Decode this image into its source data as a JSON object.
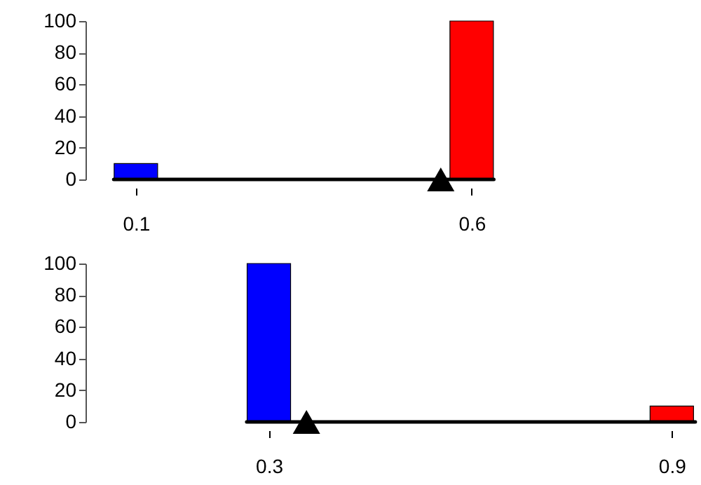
{
  "chart_data": [
    {
      "type": "bar",
      "xlim": [
        0.025,
        0.633
      ],
      "xticks": [
        0.1,
        0.6
      ],
      "ylim": [
        0,
        100
      ],
      "yticks": [
        0,
        20,
        40,
        60,
        80,
        100
      ],
      "grid": false,
      "legend": false,
      "series": [
        {
          "type": "bar",
          "x": [
            0.1,
            0.6
          ],
          "values": [
            10,
            100
          ],
          "colors": [
            "#0000ff",
            "#ff0000"
          ]
        },
        {
          "type": "line",
          "x": [
            0.067,
            0.633
          ],
          "values": [
            0,
            0
          ],
          "color": "#000000",
          "line_style": "solid"
        },
        {
          "type": "scatter",
          "x": [
            0.554
          ],
          "values": [
            0
          ],
          "color": "#000000",
          "marker": "triangle"
        }
      ]
    },
    {
      "type": "bar",
      "xlim": [
        0.027,
        0.935
      ],
      "xticks": [
        0.3,
        0.9
      ],
      "ylim": [
        0,
        100
      ],
      "yticks": [
        0,
        20,
        40,
        60,
        80,
        100
      ],
      "grid": false,
      "legend": false,
      "series": [
        {
          "type": "bar",
          "x": [
            0.3,
            0.9
          ],
          "values": [
            100,
            10
          ],
          "colors": [
            "#0000ff",
            "#ff0000"
          ]
        },
        {
          "type": "line",
          "x": [
            0.267,
            0.935
          ],
          "values": [
            0,
            0
          ],
          "color": "#000000",
          "line_style": "solid"
        },
        {
          "type": "scatter",
          "x": [
            0.356
          ],
          "values": [
            0
          ],
          "color": "#000000",
          "marker": "triangle"
        }
      ]
    }
  ]
}
